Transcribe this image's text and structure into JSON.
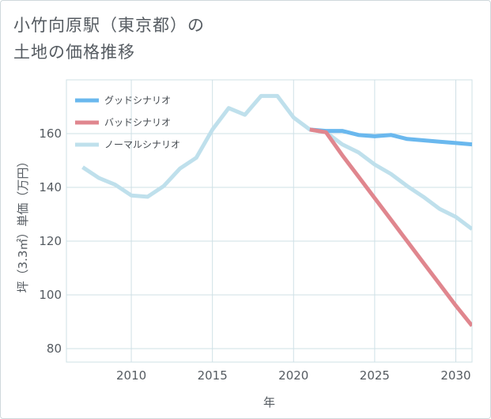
{
  "header": {
    "title_line1": "小竹向原駅（東京都）の",
    "title_line2": "土地の価格推移"
  },
  "chart_data": {
    "type": "line",
    "title": "小竹向原駅（東京都）の土地の価格推移",
    "xlabel": "年",
    "ylabel": "坪（3.3㎡）単価（万円）",
    "xlim": [
      2006,
      2031
    ],
    "ylim": [
      75,
      180
    ],
    "xticks": [
      2010,
      2015,
      2020,
      2025,
      2030
    ],
    "yticks": [
      80,
      100,
      120,
      140,
      160
    ],
    "grid": true,
    "legend_position": "top-left",
    "series": [
      {
        "name": "グッドシナリオ",
        "color": "#6ab8ee",
        "x": [
          2021,
          2022,
          2023,
          2024,
          2025,
          2026,
          2027,
          2028,
          2029,
          2030,
          2031
        ],
        "values": [
          161.5,
          161.0,
          161.0,
          159.5,
          159.0,
          159.5,
          158.0,
          157.5,
          157.0,
          156.5,
          156.0
        ]
      },
      {
        "name": "バッドシナリオ",
        "color": "#e0868e",
        "x": [
          2021,
          2022,
          2023,
          2024,
          2025,
          2026,
          2027,
          2028,
          2029,
          2030,
          2031
        ],
        "values": [
          161.5,
          160.5,
          152.0,
          144.0,
          136.0,
          128.0,
          120.0,
          112.0,
          104.0,
          96.0,
          88.5
        ]
      },
      {
        "name": "ノーマルシナリオ",
        "color": "#bfe0ec",
        "x": [
          2007,
          2008,
          2009,
          2010,
          2011,
          2012,
          2013,
          2014,
          2015,
          2016,
          2017,
          2018,
          2019,
          2020,
          2021,
          2022,
          2023,
          2024,
          2025,
          2026,
          2027,
          2028,
          2029,
          2030,
          2031
        ],
        "values": [
          147.5,
          143.5,
          141.0,
          137.0,
          136.5,
          140.5,
          147.0,
          151.0,
          161.5,
          169.5,
          167.0,
          174.0,
          174.0,
          166.0,
          161.5,
          160.5,
          156.0,
          153.0,
          148.5,
          145.0,
          140.5,
          136.5,
          132.0,
          129.0,
          124.5
        ]
      }
    ]
  }
}
